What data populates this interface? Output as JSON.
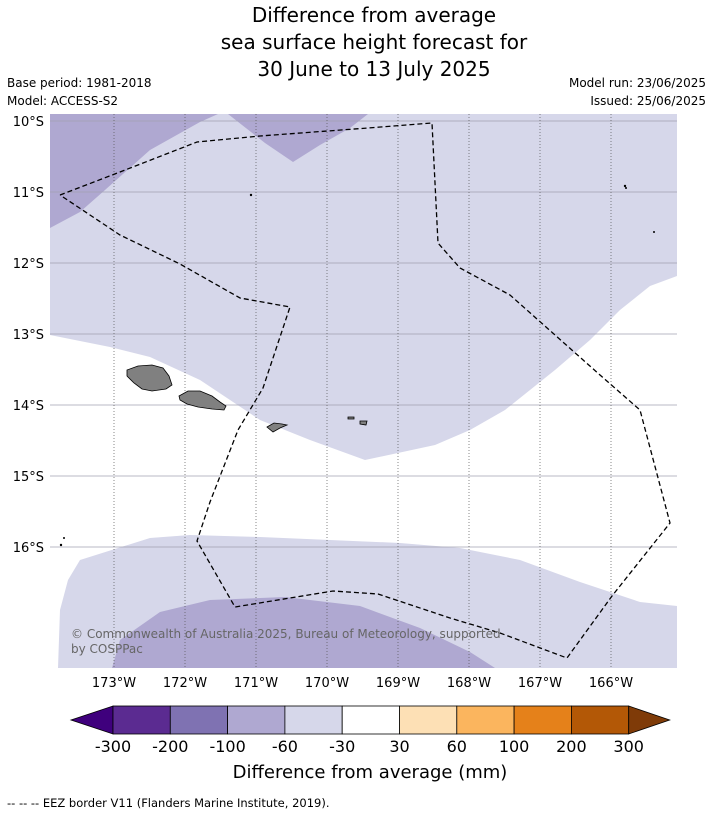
{
  "title": {
    "line1": "Difference from average",
    "line2": "sea surface height forecast for",
    "line3": "30 June to 13 July 2025"
  },
  "meta": {
    "base_period": "Base period: 1981-2018",
    "model": "Model: ACCESS-S2",
    "model_run": "Model run: 23/06/2025",
    "issued": "Issued: 25/06/2025"
  },
  "map": {
    "lat_labels": [
      "10°S",
      "11°S",
      "12°S",
      "13°S",
      "14°S",
      "15°S",
      "16°S"
    ],
    "lon_labels": [
      "173°W",
      "172°W",
      "171°W",
      "170°W",
      "169°W",
      "168°W",
      "167°W",
      "166°W"
    ],
    "copyright_line1": "© Commonwealth of Australia 2025, Bureau of Meteorology, supported",
    "copyright_line2": "by COSPPac",
    "colors": {
      "ocean_neutral": "#ffffff",
      "minus_60_30": "#d6d7ea",
      "minus_100_60": "#afa8d1",
      "land": "#808080",
      "eez_line": "#000000"
    }
  },
  "colorbar": {
    "title": "Difference from average (mm)",
    "tick_labels": [
      "-300",
      "-200",
      "-100",
      "-60",
      "-30",
      "30",
      "60",
      "100",
      "200",
      "300"
    ],
    "colors": [
      "#3f007d",
      "#5b2b91",
      "#7f72b2",
      "#afa8d1",
      "#d6d7ea",
      "#ffffff",
      "#fde0b5",
      "#fbb55e",
      "#e5811a",
      "#b35806",
      "#7f3b08"
    ]
  },
  "footer": {
    "legend_line": "-- -- -- EEZ border V11 (Flanders Marine Institute, 2019)."
  }
}
